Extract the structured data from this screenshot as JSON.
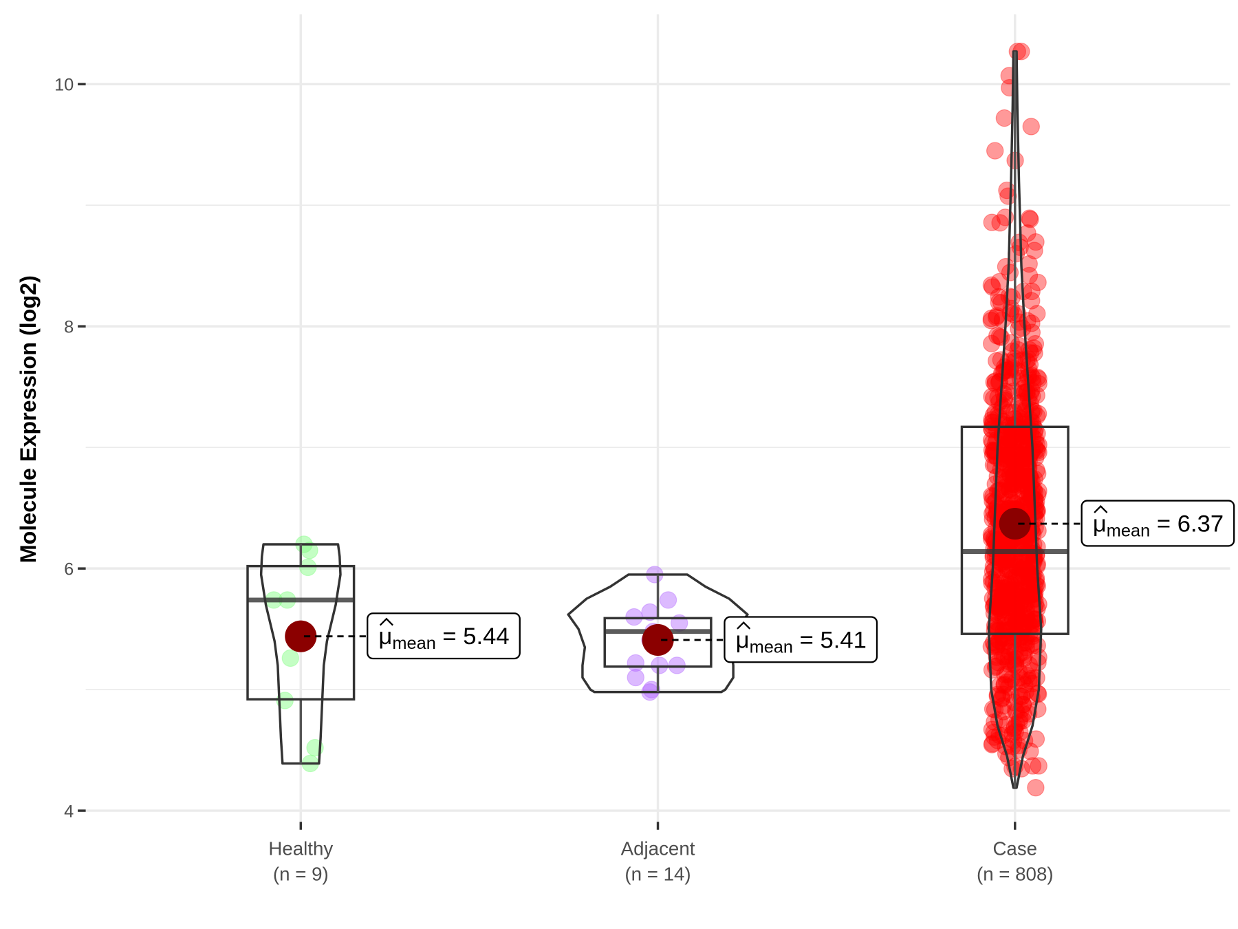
{
  "chart_data": {
    "type": "violin-box-scatter",
    "ylabel": "Molecule Expression (log2)",
    "xlabel": "",
    "ylim": [
      3.9,
      10.6
    ],
    "yticks": [
      4,
      6,
      8,
      10
    ],
    "grid": true,
    "groups": [
      {
        "name": "Healthy",
        "n_label": "(n = 9)",
        "color": "#7CFC7C",
        "box": {
          "q1": 4.92,
          "median": 5.74,
          "q3": 6.02,
          "whisker_low": 4.39,
          "whisker_high": 6.2
        },
        "mean": 5.44,
        "mean_label": "5.44",
        "points": [
          6.2,
          6.15,
          6.01,
          5.74,
          5.74,
          5.26,
          4.91,
          4.52,
          4.39
        ]
      },
      {
        "name": "Adjacent",
        "n_label": "(n = 14)",
        "color": "#B266FF",
        "box": {
          "q1": 5.19,
          "median": 5.48,
          "q3": 5.59,
          "whisker_low": 4.98,
          "whisker_high": 5.95
        },
        "mean": 5.41,
        "mean_label": "5.41",
        "points": [
          5.95,
          5.74,
          5.64,
          5.6,
          5.55,
          5.48,
          5.44,
          5.41,
          5.22,
          5.2,
          5.2,
          5.1,
          5.0,
          4.98
        ]
      },
      {
        "name": "Case",
        "n_label": "(n = 808)",
        "color": "#FF0000",
        "box": {
          "q1": 5.46,
          "median": 6.14,
          "q3": 7.17,
          "whisker_low": 4.19,
          "whisker_high": 10.27
        },
        "mean": 6.37,
        "mean_label": "6.37",
        "n": 808,
        "points_extreme": [
          10.27,
          10.27,
          10.07,
          9.97,
          9.72,
          9.65,
          9.45,
          9.37,
          8.9,
          8.77,
          8.6,
          4.37,
          4.37,
          4.19
        ]
      }
    ],
    "mean_symbol": "μ",
    "mean_subscript": "mean",
    "mean_color": "#8B0000"
  }
}
